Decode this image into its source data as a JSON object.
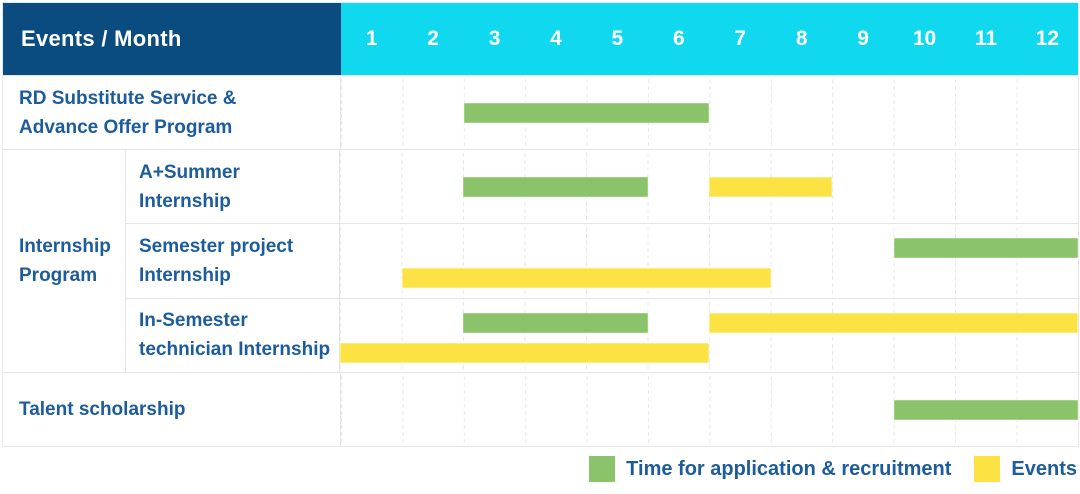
{
  "header": {
    "corner_label": "Events / Month",
    "months": [
      "1",
      "2",
      "3",
      "4",
      "5",
      "6",
      "7",
      "8",
      "9",
      "10",
      "11",
      "12"
    ]
  },
  "colors": {
    "header_navy": "#0a4c80",
    "header_cyan": "#0fd8ef",
    "label_blue": "#1c5c9c",
    "application_green": "#8ac36a",
    "event_yellow": "#fde244",
    "grid_line": "#e9e9e9"
  },
  "legend": {
    "items": [
      {
        "kind": "application",
        "label": "Time for application & recruitment"
      },
      {
        "kind": "event",
        "label": "Events"
      }
    ]
  },
  "chart_data": {
    "type": "gantt",
    "title": "Events / Month",
    "x_axis_label": "Month",
    "x_range": [
      1,
      12
    ],
    "x_ticks": [
      "1",
      "2",
      "3",
      "4",
      "5",
      "6",
      "7",
      "8",
      "9",
      "10",
      "11",
      "12"
    ],
    "legend_entries": [
      "Time for application & recruitment",
      "Events"
    ],
    "bar_kinds": {
      "application": "Time for application & recruitment",
      "event": "Events"
    },
    "row_groups": [
      {
        "rows": [
          {
            "label": "RD Substitute Service & Advance Offer Program",
            "label_lines": [
              "RD Substitute Service &",
              "Advance Offer Program"
            ],
            "lanes": 1,
            "bars": [
              {
                "kind": "application",
                "start_month": 3,
                "end_month": 6,
                "lane": 0
              }
            ]
          }
        ]
      },
      {
        "group_label": "Internship Program",
        "group_label_lines": [
          "Internship",
          "Program"
        ],
        "rows": [
          {
            "label": "A+Summer Internship",
            "label_lines": [
              "A+Summer",
              "Internship"
            ],
            "lanes": 1,
            "bars": [
              {
                "kind": "application",
                "start_month": 3,
                "end_month": 5,
                "lane": 0
              },
              {
                "kind": "event",
                "start_month": 7,
                "end_month": 8,
                "lane": 0
              }
            ]
          },
          {
            "label": "Semester project Internship",
            "label_lines": [
              "Semester project",
              "Internship"
            ],
            "lanes": 2,
            "bars": [
              {
                "kind": "application",
                "start_month": 10,
                "end_month": 12,
                "lane": 0
              },
              {
                "kind": "event",
                "start_month": 2,
                "end_month": 7,
                "lane": 1
              }
            ]
          },
          {
            "label": "In-Semester technician Internship",
            "label_lines": [
              "In-Semester",
              "technician Internship"
            ],
            "lanes": 2,
            "bars": [
              {
                "kind": "application",
                "start_month": 3,
                "end_month": 5,
                "lane": 0
              },
              {
                "kind": "event",
                "start_month": 7,
                "end_month": 12,
                "lane": 0
              },
              {
                "kind": "event",
                "start_month": 1,
                "end_month": 6,
                "lane": 1
              }
            ]
          }
        ]
      },
      {
        "rows": [
          {
            "label": "Talent scholarship",
            "label_lines": [
              "Talent scholarship"
            ],
            "lanes": 1,
            "bars": [
              {
                "kind": "application",
                "start_month": 10,
                "end_month": 12,
                "lane": 0
              }
            ]
          }
        ]
      }
    ]
  }
}
